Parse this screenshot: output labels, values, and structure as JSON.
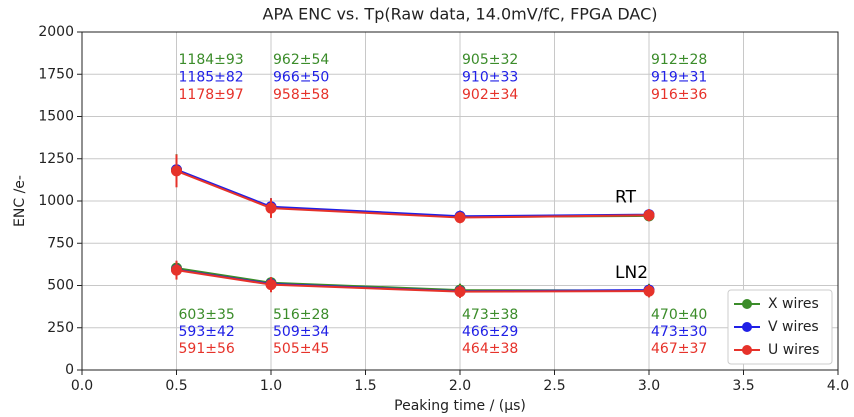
{
  "chart_data": {
    "type": "line",
    "title": "APA ENC vs. Tp(Raw data, 14.0mV/fC, FPGA DAC)",
    "xlabel": "Peaking time / (μs)",
    "ylabel": "ENC /e-",
    "x": [
      0.5,
      1,
      2,
      3
    ],
    "xlim": [
      0,
      4
    ],
    "xticks": [
      {
        "value": 0,
        "label": "0.0"
      },
      0.5,
      {
        "value": 1,
        "label": "1.0"
      },
      1.5,
      {
        "value": 2,
        "label": "2.0"
      },
      2.5,
      {
        "value": 3,
        "label": "3.0"
      },
      3.5,
      {
        "value": 4,
        "label": "4.0"
      }
    ],
    "ylim": [
      0,
      2000
    ],
    "yticks": [
      0,
      250,
      500,
      750,
      1000,
      1250,
      1500,
      1750,
      2000
    ],
    "grid": true,
    "legend": "lower right",
    "series": [
      {
        "name": "X wires",
        "color": "#3b8c2a"
      },
      {
        "name": "V wires",
        "color": "#2020e6"
      },
      {
        "name": "U wires",
        "color": "#e6322a"
      }
    ],
    "groups": [
      {
        "label": "RT",
        "series": [
          {
            "values": [
              1184,
              962,
              905,
              912
            ],
            "errors": [
              93,
              54,
              32,
              28
            ],
            "value_labels": [
              "1184±93",
              "962±54",
              "905±32",
              "912±28"
            ]
          },
          {
            "values": [
              1185,
              966,
              910,
              919
            ],
            "errors": [
              82,
              50,
              33,
              31
            ],
            "value_labels": [
              "1185±82",
              "966±50",
              "910±33",
              "919±31"
            ]
          },
          {
            "values": [
              1178,
              958,
              902,
              916
            ],
            "errors": [
              97,
              58,
              34,
              36
            ],
            "value_labels": [
              "1178±97",
              "958±58",
              "902±34",
              "916±36"
            ]
          }
        ]
      },
      {
        "label": "LN2",
        "series": [
          {
            "values": [
              603,
              516,
              473,
              470
            ],
            "errors": [
              35,
              28,
              38,
              40
            ],
            "value_labels": [
              "603±35",
              "516±28",
              "473±38",
              "470±40"
            ]
          },
          {
            "values": [
              593,
              509,
              466,
              473
            ],
            "errors": [
              42,
              34,
              29,
              30
            ],
            "value_labels": [
              "593±42",
              "509±34",
              "466±29",
              "473±30"
            ]
          },
          {
            "values": [
              591,
              505,
              464,
              467
            ],
            "errors": [
              56,
              45,
              38,
              37
            ],
            "value_labels": [
              "591±56",
              "505±45",
              "464±38",
              "467±37"
            ]
          }
        ]
      }
    ]
  }
}
